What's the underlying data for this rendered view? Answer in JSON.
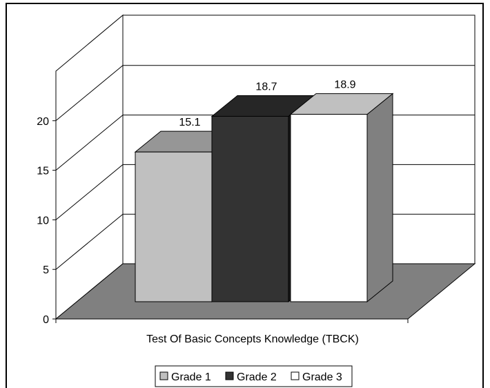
{
  "chart_data": {
    "type": "bar",
    "title": "",
    "xlabel": "Test Of Basic Concepts Knowledge (TBCK)",
    "ylabel": "",
    "ylim": [
      0,
      25
    ],
    "yticks": [
      "0",
      "5",
      "10",
      "15",
      "20"
    ],
    "grid": true,
    "legend_position": "bottom",
    "categories": [
      "Test Of Basic Concepts Knowledge (TBCK)"
    ],
    "series": [
      {
        "name": "Grade 1",
        "values": [
          15.1
        ],
        "value_label": "15.1",
        "color": "#c0c0c0",
        "top_color": "#969696",
        "side_color": "#808080"
      },
      {
        "name": "Grade 2",
        "values": [
          18.7
        ],
        "value_label": "18.7",
        "color": "#333333",
        "top_color": "#262626",
        "side_color": "#1a1a1a"
      },
      {
        "name": "Grade 3",
        "values": [
          18.9
        ],
        "value_label": "18.9",
        "color": "#ffffff",
        "top_color": "#c0c0c0",
        "side_color": "#808080"
      }
    ],
    "floor_color": "#808080"
  }
}
